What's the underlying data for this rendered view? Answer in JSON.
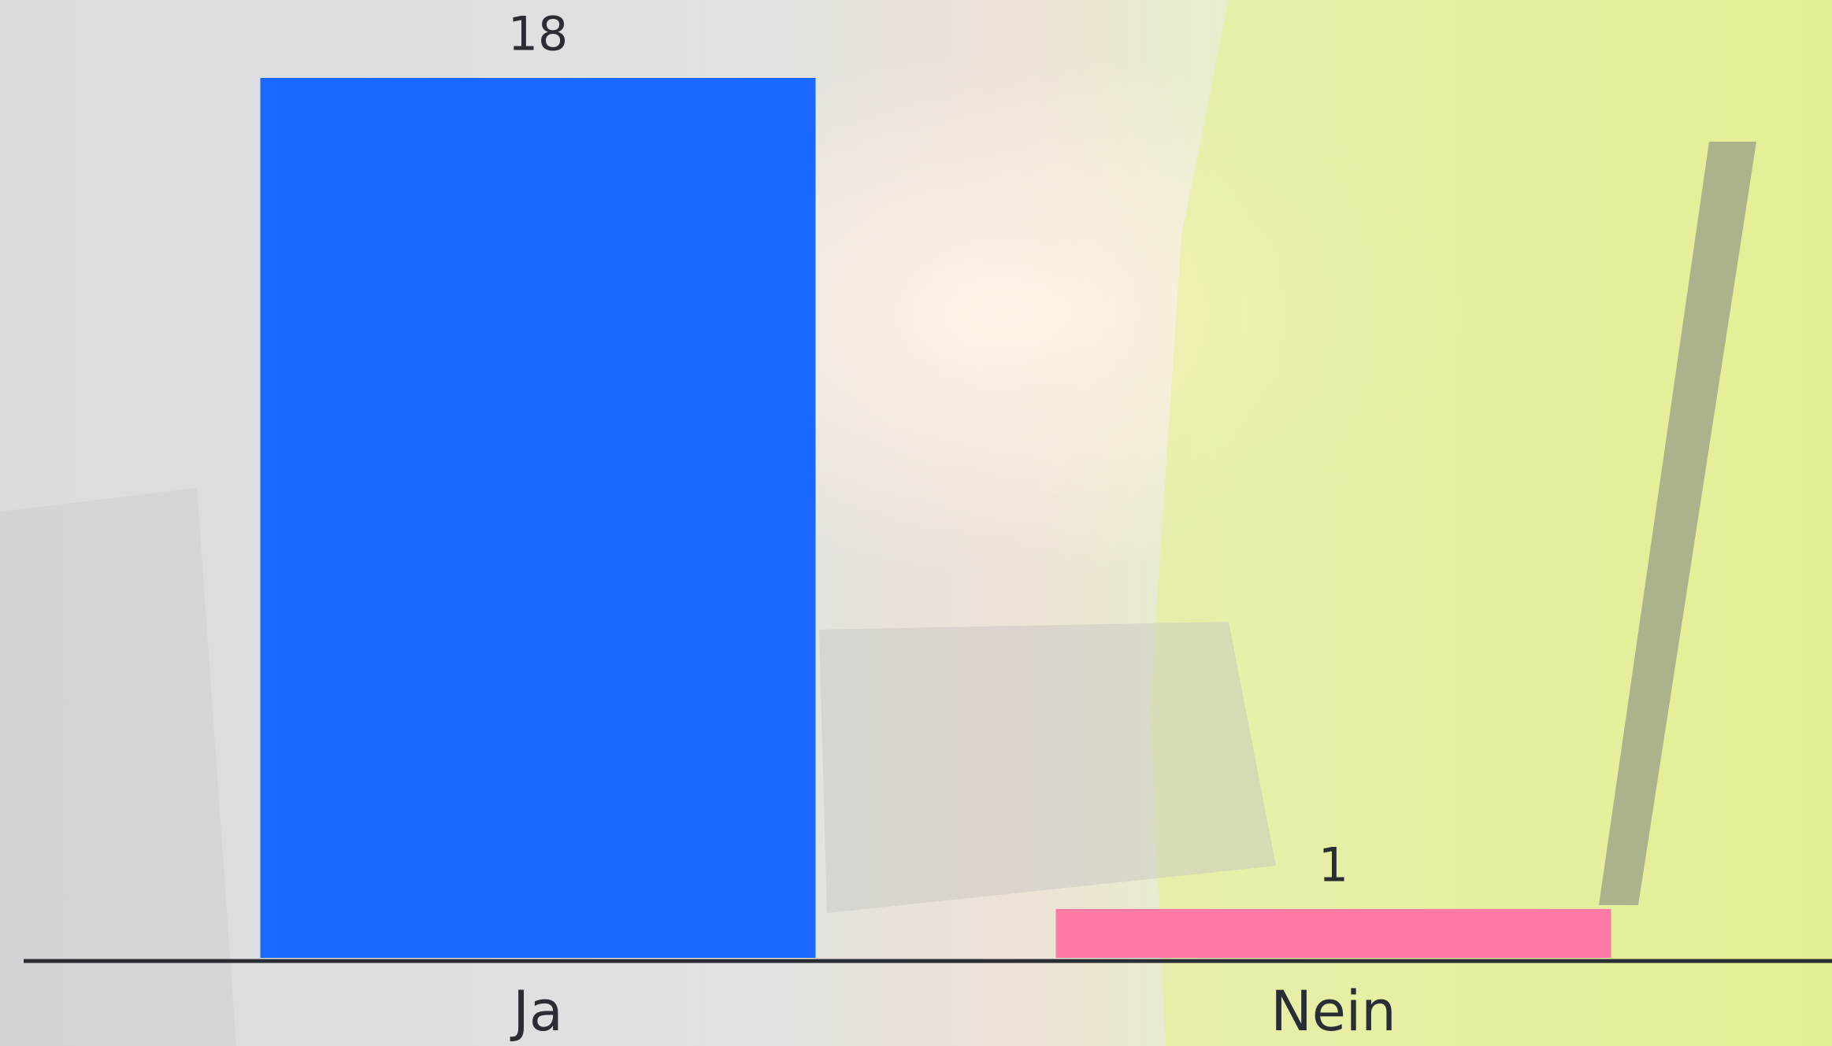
{
  "chart_data": {
    "type": "bar",
    "categories": [
      "Ja",
      "Nein"
    ],
    "values": [
      18,
      1
    ],
    "colors": [
      "#1a68ff",
      "#ff7ba6"
    ]
  }
}
